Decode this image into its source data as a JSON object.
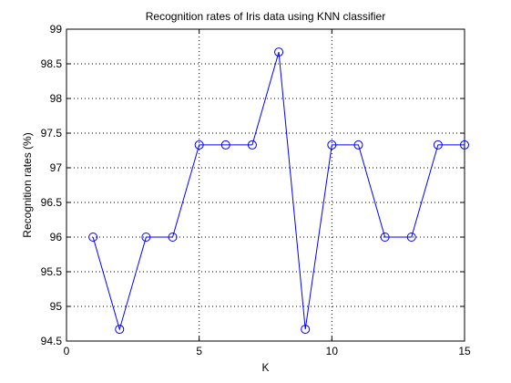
{
  "chart_data": {
    "type": "line",
    "title": "Recognition rates of Iris data using KNN classifier",
    "xlabel": "K",
    "ylabel": "Recognition rates (%)",
    "xlim": [
      0,
      15
    ],
    "ylim": [
      94.5,
      99
    ],
    "xticks": [
      0,
      5,
      10,
      15
    ],
    "yticks": [
      94.5,
      95,
      95.5,
      96,
      96.5,
      97,
      97.5,
      98,
      98.5,
      99
    ],
    "grid": true,
    "marker": "circle",
    "line_color": "#0000ff",
    "series": [
      {
        "x": [
          1,
          2,
          3,
          4,
          5,
          6,
          7,
          8,
          9,
          10,
          11,
          12,
          13,
          14,
          15
        ],
        "values": [
          96,
          94.67,
          96,
          96,
          97.33,
          97.33,
          97.33,
          98.67,
          94.67,
          97.33,
          97.33,
          96,
          96,
          97.33,
          97.33
        ]
      }
    ]
  }
}
